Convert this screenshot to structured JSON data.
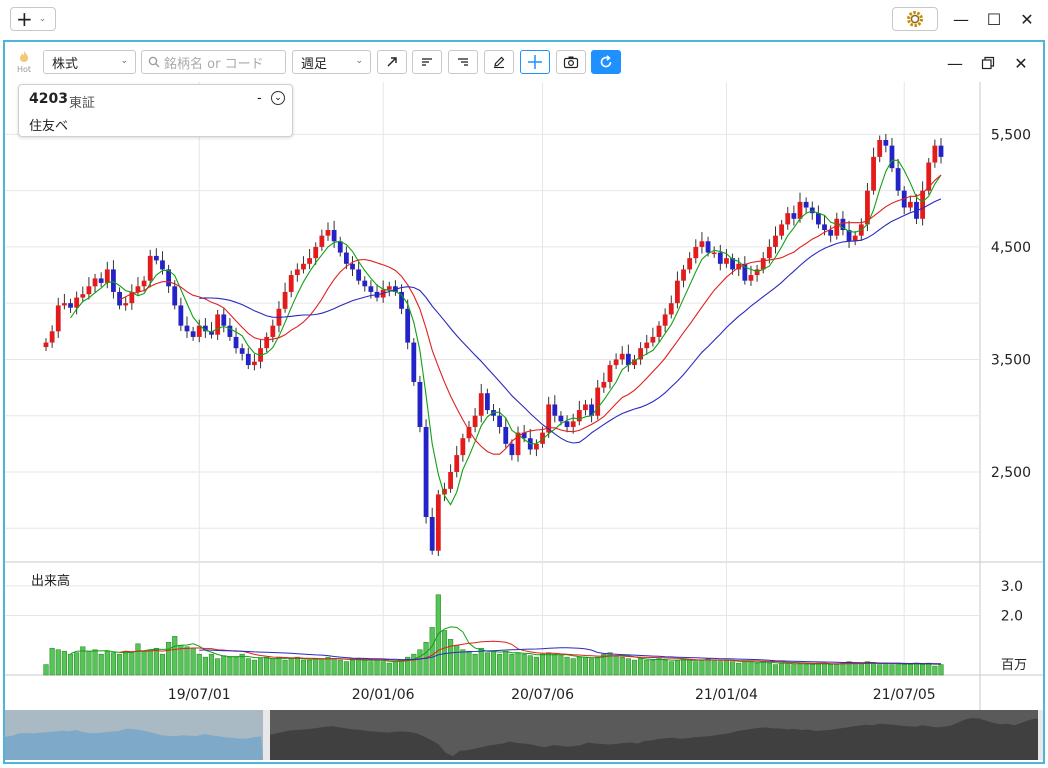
{
  "window": {
    "add_glyph": "+",
    "minimize_glyph": "—",
    "maximize_glyph": "☐",
    "close_glyph": "✕"
  },
  "toolbar": {
    "hot_label": "Hot",
    "market_select": "株式",
    "search_placeholder": "銘柄名 or コード",
    "period_select": "週足",
    "tools": [
      "arrow-tool-icon",
      "align-left-icon",
      "align-right-icon",
      "pencil-icon",
      "crosshair-icon",
      "camera-icon",
      "refresh-icon"
    ]
  },
  "stock": {
    "code": "4203",
    "market": "東証",
    "name": "住友ベ",
    "dash": "-"
  },
  "colors": {
    "up": "#e31b1b",
    "down": "#2323c8",
    "ma_short": "#12a012",
    "ma_mid": "#e02020",
    "ma_long": "#2a2ac0",
    "volume": "#56c456",
    "accent": "#1e90ff"
  },
  "chart_data": {
    "type": "candlestick",
    "price_ticks": [
      "5,500",
      "4,500",
      "3,500",
      "2,500"
    ],
    "price_tick_values": [
      5500,
      4500,
      3500,
      2500
    ],
    "ylim": [
      1700,
      5850
    ],
    "volume_label": "出来高",
    "volume_ticks": [
      "3.0",
      "2.0"
    ],
    "volume_unit": "百万",
    "volume_ylim": [
      0,
      3.6
    ],
    "x_ticks": [
      "19/07/01",
      "20/01/06",
      "20/07/06",
      "21/01/04",
      "21/07/05"
    ],
    "x_tick_index": [
      25,
      55,
      81,
      111,
      140
    ],
    "close": [
      3650,
      3750,
      3980,
      4000,
      3960,
      4050,
      4080,
      4150,
      4220,
      4180,
      4300,
      4100,
      3980,
      4000,
      4100,
      4150,
      4200,
      4420,
      4380,
      4300,
      4150,
      3980,
      3800,
      3750,
      3700,
      3800,
      3750,
      3720,
      3900,
      3800,
      3700,
      3600,
      3550,
      3450,
      3480,
      3600,
      3700,
      3800,
      3950,
      4100,
      4250,
      4300,
      4350,
      4400,
      4500,
      4600,
      4650,
      4550,
      4450,
      4350,
      4300,
      4200,
      4150,
      4100,
      4050,
      4120,
      4150,
      4100,
      3950,
      3650,
      3300,
      2900,
      2100,
      1800,
      2300,
      2350,
      2500,
      2650,
      2800,
      2900,
      3000,
      3200,
      3050,
      3000,
      2900,
      2750,
      2650,
      2850,
      2800,
      2700,
      2750,
      2850,
      3100,
      3000,
      2950,
      2900,
      2950,
      3050,
      3100,
      3000,
      3250,
      3300,
      3450,
      3500,
      3550,
      3450,
      3500,
      3600,
      3650,
      3700,
      3800,
      3900,
      4000,
      4200,
      4300,
      4400,
      4500,
      4550,
      4450,
      4450,
      4350,
      4400,
      4300,
      4350,
      4200,
      4250,
      4300,
      4400,
      4500,
      4600,
      4700,
      4800,
      4750,
      4900,
      4850,
      4800,
      4700,
      4650,
      4600,
      4750,
      4650,
      4550,
      4600,
      4700,
      5000,
      5300,
      5450,
      5400,
      5200,
      5000,
      4850,
      4900,
      4750,
      5000,
      5250,
      5400,
      5300
    ],
    "volume": [
      0.35,
      0.9,
      0.85,
      0.8,
      0.7,
      0.75,
      0.95,
      0.8,
      0.85,
      0.7,
      0.8,
      0.75,
      0.7,
      0.8,
      0.75,
      1.05,
      0.8,
      0.85,
      0.9,
      0.7,
      1.1,
      1.3,
      1.0,
      0.95,
      0.9,
      0.7,
      0.6,
      0.7,
      0.55,
      0.65,
      0.6,
      0.6,
      0.7,
      0.55,
      0.5,
      0.55,
      0.6,
      0.55,
      0.6,
      0.5,
      0.55,
      0.6,
      0.5,
      0.5,
      0.55,
      0.55,
      0.6,
      0.55,
      0.5,
      0.45,
      0.5,
      0.55,
      0.5,
      0.45,
      0.5,
      0.45,
      0.4,
      0.45,
      0.5,
      0.6,
      0.7,
      0.85,
      1.1,
      1.6,
      2.7,
      1.5,
      1.2,
      1.0,
      0.85,
      0.8,
      0.7,
      0.9,
      0.75,
      0.8,
      0.7,
      0.8,
      0.7,
      0.75,
      0.7,
      0.65,
      0.6,
      0.7,
      0.75,
      0.7,
      0.65,
      0.6,
      0.55,
      0.6,
      0.6,
      0.55,
      0.6,
      0.7,
      0.75,
      0.65,
      0.6,
      0.55,
      0.5,
      0.55,
      0.5,
      0.5,
      0.55,
      0.5,
      0.45,
      0.5,
      0.55,
      0.5,
      0.45,
      0.5,
      0.55,
      0.5,
      0.45,
      0.5,
      0.45,
      0.4,
      0.45,
      0.45,
      0.4,
      0.45,
      0.4,
      0.35,
      0.4,
      0.4,
      0.35,
      0.4,
      0.35,
      0.35,
      0.4,
      0.4,
      0.35,
      0.35,
      0.4,
      0.45,
      0.4,
      0.4,
      0.45,
      0.4,
      0.35,
      0.4,
      0.35,
      0.4,
      0.35,
      0.35,
      0.4,
      0.35,
      0.4,
      0.3,
      0.35
    ]
  }
}
